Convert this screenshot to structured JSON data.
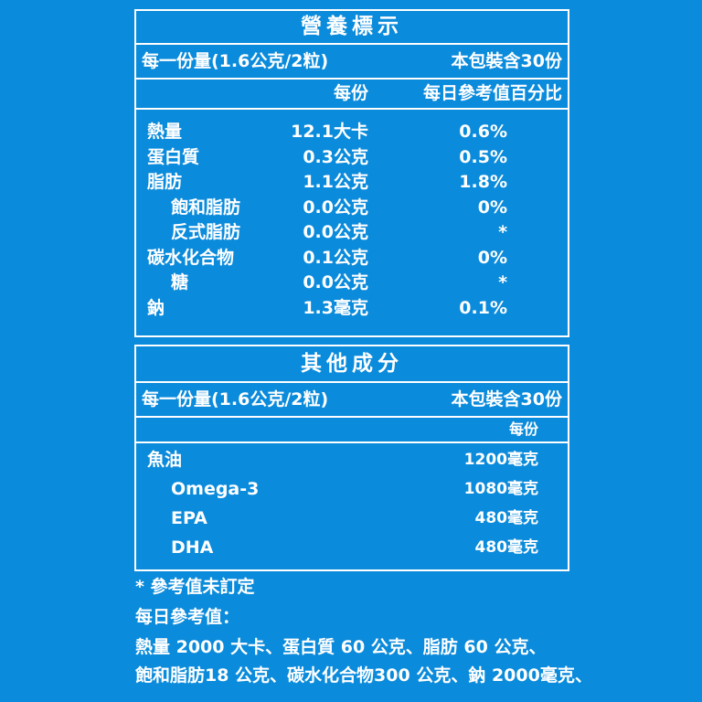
{
  "nutrition": {
    "title": "營養標示",
    "serving_size": "每一份量(1.6公克/2粒)",
    "servings_per_package": "本包裝含30份",
    "col_per_serving": "每份",
    "col_daily_value": "每日參考值百分比",
    "items": [
      {
        "name": "熱量",
        "amount": "12.1大卡",
        "percent": "0.6%",
        "indent": false
      },
      {
        "name": "蛋白質",
        "amount": "0.3公克",
        "percent": "0.5%",
        "indent": false
      },
      {
        "name": "脂肪",
        "amount": "1.1公克",
        "percent": "1.8%",
        "indent": false
      },
      {
        "name": "飽和脂肪",
        "amount": "0.0公克",
        "percent": "0%",
        "indent": true
      },
      {
        "name": "反式脂肪",
        "amount": "0.0公克",
        "percent": "*",
        "indent": true
      },
      {
        "name": "碳水化合物",
        "amount": "0.1公克",
        "percent": "0%",
        "indent": false
      },
      {
        "name": "糖",
        "amount": "0.0公克",
        "percent": "*",
        "indent": true
      },
      {
        "name": "鈉",
        "amount": "1.3毫克",
        "percent": "0.1%",
        "indent": false
      }
    ]
  },
  "other": {
    "title": "其他成分",
    "serving_size": "每一份量(1.6公克/2粒)",
    "servings_per_package": "本包裝含30份",
    "col_per_serving": "每份",
    "items": [
      {
        "name": "魚油",
        "amount": "1200毫克",
        "indent": false
      },
      {
        "name": "Omega-3",
        "amount": "1080毫克",
        "indent": true
      },
      {
        "name": "EPA",
        "amount": "480毫克",
        "indent": true
      },
      {
        "name": "DHA",
        "amount": "480毫克",
        "indent": true
      }
    ]
  },
  "notes": {
    "asterisk": "* 參考值未訂定",
    "daily_label": "每日參考值：",
    "line1": "熱量 2000 大卡、蛋白質 60 公克、脂肪 60 公克、",
    "line2": "飽和脂肪18 公克、碳水化合物300 公克、鈉 2000毫克、"
  },
  "colors": {
    "background": "#0b8bdb",
    "text": "#ffffff"
  }
}
